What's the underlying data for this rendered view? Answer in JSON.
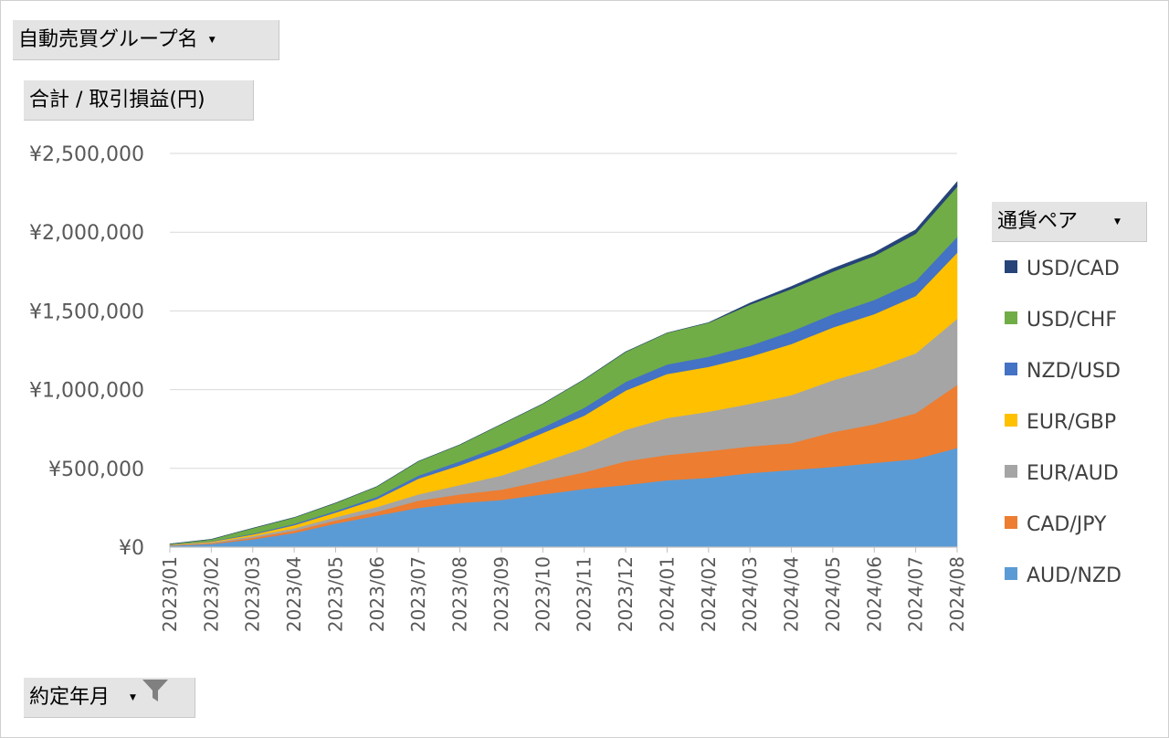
{
  "filters": {
    "group_label": "自動売買グループ名",
    "value_label": "合計 / 取引損益(円)",
    "legend_label": "通貨ペア",
    "axis_label": "約定年月"
  },
  "colors": {
    "USD/CAD": "#264478",
    "USD/CHF": "#70ad47",
    "NZD/USD": "#4472c4",
    "EUR/GBP": "#ffc000",
    "EUR/AUD": "#a5a5a5",
    "CAD/JPY": "#ed7d31",
    "AUD/NZD": "#5b9bd5"
  },
  "chart_data": {
    "type": "area",
    "stacked": true,
    "categories": [
      "2023/01",
      "2023/02",
      "2023/03",
      "2023/04",
      "2023/05",
      "2023/06",
      "2023/07",
      "2023/08",
      "2023/09",
      "2023/10",
      "2023/11",
      "2023/12",
      "2024/01",
      "2024/02",
      "2024/03",
      "2024/04",
      "2024/05",
      "2024/06",
      "2024/07",
      "2024/08"
    ],
    "y_ticks": [
      "¥0",
      "¥500,000",
      "¥1,000,000",
      "¥1,500,000",
      "¥2,000,000",
      "¥2,500,000"
    ],
    "ylim": [
      0,
      2500000
    ],
    "grid": true,
    "legend_position": "right",
    "series": [
      {
        "name": "AUD/NZD",
        "values": [
          10000,
          20000,
          50000,
          90000,
          150000,
          200000,
          250000,
          280000,
          300000,
          335000,
          370000,
          395000,
          425000,
          440000,
          470000,
          490000,
          510000,
          535000,
          560000,
          630000
        ]
      },
      {
        "name": "CAD/JPY",
        "values": [
          2000,
          5000,
          10000,
          15000,
          20000,
          25000,
          45000,
          55000,
          65000,
          85000,
          105000,
          150000,
          160000,
          170000,
          170000,
          170000,
          220000,
          245000,
          290000,
          400000
        ]
      },
      {
        "name": "EUR/AUD",
        "values": [
          2000,
          5000,
          10000,
          15000,
          20000,
          30000,
          40000,
          60000,
          90000,
          120000,
          155000,
          200000,
          235000,
          250000,
          270000,
          305000,
          330000,
          355000,
          380000,
          420000
        ]
      },
      {
        "name": "EUR/GBP",
        "values": [
          2000,
          5000,
          10000,
          20000,
          30000,
          50000,
          100000,
          125000,
          160000,
          185000,
          205000,
          250000,
          280000,
          285000,
          300000,
          325000,
          335000,
          345000,
          365000,
          420000
        ]
      },
      {
        "name": "NZD/USD",
        "values": [
          1000,
          3000,
          5000,
          8000,
          10000,
          15000,
          20000,
          25000,
          30000,
          35000,
          50000,
          55000,
          60000,
          65000,
          70000,
          80000,
          85000,
          90000,
          95000,
          100000
        ]
      },
      {
        "name": "USD/CHF",
        "values": [
          3000,
          12000,
          35000,
          40000,
          50000,
          65000,
          90000,
          105000,
          135000,
          150000,
          180000,
          190000,
          200000,
          215000,
          260000,
          270000,
          270000,
          280000,
          300000,
          320000
        ]
      },
      {
        "name": "USD/CAD",
        "values": [
          0,
          0,
          0,
          0,
          0,
          0,
          0,
          0,
          0,
          0,
          0,
          0,
          0,
          0,
          10000,
          15000,
          20000,
          20000,
          25000,
          30000
        ]
      }
    ]
  }
}
